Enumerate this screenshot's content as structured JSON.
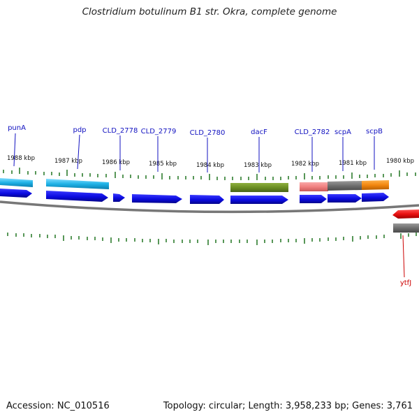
{
  "title": "Clostridium botulinum B1 str. Okra, complete genome",
  "footer": {
    "accession": "Accession: NC_010516",
    "summary": "Topology: circular; Length: 3,958,233 bp; Genes: 3,761"
  },
  "colors": {
    "gene_blue": "#0a0adf",
    "cyan": "#1fb2e6",
    "olive": "#6b8e23",
    "pink": "#f08080",
    "gray": "#6e6e6e",
    "orange": "#f2870f",
    "red": "#e81010",
    "tick_green": "#2e7d2e",
    "label_blue": "#1010c0",
    "label_red": "#cc0000",
    "backbone": "#777777"
  },
  "scale_labels": [
    "1988 kbp",
    "1987 kbp",
    "1986 kbp",
    "1985 kbp",
    "1984 kbp",
    "1983 kbp",
    "1982 kbp",
    "1981 kbp",
    "1980 kbp"
  ],
  "gene_labels": [
    "punA",
    "pdp",
    "CLD_2778",
    "CLD_2779",
    "CLD_2780",
    "dacF",
    "CLD_2782",
    "scpA",
    "scpB",
    "ytfJ"
  ]
}
